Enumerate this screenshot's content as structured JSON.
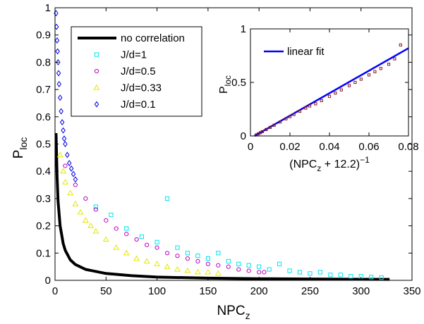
{
  "chart_data": [
    {
      "type": "scatter",
      "xlabel": "NPC",
      "xlabel_sub": "z",
      "ylabel": "P",
      "ylabel_sub": "loc",
      "xlim": [
        0,
        350
      ],
      "ylim": [
        0,
        1
      ],
      "xticks": [
        0,
        50,
        100,
        150,
        200,
        250,
        300,
        350
      ],
      "yticks": [
        0,
        0.1,
        0.2,
        0.3,
        0.4,
        0.5,
        0.6,
        0.7,
        0.8,
        0.9,
        1
      ],
      "xtick_labels": [
        "0",
        "50",
        "100",
        "150",
        "200",
        "250",
        "300",
        "350"
      ],
      "ytick_labels": [
        "0",
        "0.1",
        "0.2",
        "0.3",
        "0.4",
        "0.5",
        "0.6",
        "0.7",
        "0.8",
        "0.9",
        "1"
      ],
      "grid": false,
      "legend_position": "top-left",
      "series": [
        {
          "name": "no correlation",
          "kind": "line",
          "color": "#000000",
          "x": [
            1,
            2,
            3,
            5,
            8,
            10,
            15,
            20,
            30,
            50,
            75,
            100,
            150,
            200,
            250,
            300,
            328
          ],
          "y": [
            0.54,
            0.38,
            0.29,
            0.2,
            0.135,
            0.11,
            0.075,
            0.058,
            0.04,
            0.025,
            0.017,
            0.012,
            0.008,
            0.006,
            0.005,
            0.004,
            0.0035
          ]
        },
        {
          "name": "J/d=1",
          "kind": "marker",
          "marker": "square",
          "color": "#00e5ee",
          "x": [
            40,
            55,
            70,
            85,
            100,
            110,
            120,
            130,
            140,
            150,
            160,
            170,
            180,
            190,
            200,
            210,
            220,
            230,
            240,
            250,
            260,
            270,
            280,
            290,
            300,
            310,
            320
          ],
          "y": [
            0.27,
            0.24,
            0.19,
            0.16,
            0.14,
            0.3,
            0.12,
            0.1,
            0.09,
            0.08,
            0.1,
            0.07,
            0.06,
            0.055,
            0.05,
            0.04,
            0.06,
            0.035,
            0.03,
            0.025,
            0.03,
            0.02,
            0.02,
            0.015,
            0.015,
            0.012,
            0.01
          ]
        },
        {
          "name": "J/d=0.5",
          "kind": "marker",
          "marker": "circle",
          "color": "#c000c0",
          "x": [
            10,
            20,
            30,
            40,
            50,
            60,
            70,
            80,
            90,
            100,
            110,
            120,
            130,
            140,
            150,
            160,
            170,
            180,
            190,
            200,
            205
          ],
          "y": [
            0.42,
            0.35,
            0.3,
            0.26,
            0.22,
            0.19,
            0.17,
            0.15,
            0.13,
            0.12,
            0.1,
            0.09,
            0.08,
            0.07,
            0.06,
            0.055,
            0.05,
            0.04,
            0.035,
            0.03,
            0.03
          ]
        },
        {
          "name": "J/d=0.33",
          "kind": "marker",
          "marker": "triangle",
          "color": "#e6e600",
          "x": [
            5,
            8,
            10,
            15,
            20,
            25,
            30,
            35,
            40,
            50,
            60,
            70,
            80,
            90,
            100,
            110,
            120,
            130,
            140,
            150,
            160
          ],
          "y": [
            0.46,
            0.4,
            0.36,
            0.32,
            0.28,
            0.25,
            0.22,
            0.2,
            0.18,
            0.15,
            0.12,
            0.1,
            0.08,
            0.07,
            0.06,
            0.05,
            0.04,
            0.035,
            0.03,
            0.03,
            0.025
          ]
        },
        {
          "name": "J/d=0.1",
          "kind": "marker",
          "marker": "diamond",
          "color": "#0000e0",
          "x": [
            1,
            1.5,
            2,
            2.5,
            3,
            3.5,
            4,
            5,
            6,
            7,
            8,
            9,
            10,
            12,
            14,
            16,
            18,
            20
          ],
          "y": [
            0.98,
            0.93,
            0.88,
            0.84,
            0.8,
            0.76,
            0.72,
            0.67,
            0.62,
            0.58,
            0.55,
            0.52,
            0.5,
            0.46,
            0.43,
            0.41,
            0.39,
            0.37
          ]
        }
      ]
    },
    {
      "type": "scatter",
      "inset": true,
      "xlabel": "(NPC",
      "xlabel_sub": "z",
      "xlabel_tail": " + 12.2)",
      "xlabel_sup": "−1",
      "ylabel": "P",
      "ylabel_sub": "loc",
      "xlim": [
        0,
        0.08
      ],
      "ylim": [
        0,
        1
      ],
      "xticks": [
        0,
        0.02,
        0.04,
        0.06,
        0.08
      ],
      "yticks": [
        0,
        0.5,
        1
      ],
      "xtick_labels": [
        "0",
        "0.02",
        "0.04",
        "0.06",
        "0.08"
      ],
      "ytick_labels": [
        "0",
        "0.5",
        "1"
      ],
      "grid": false,
      "legend_position": "top-left",
      "series": [
        {
          "name": "linear fit",
          "kind": "line",
          "color": "#0000ff",
          "x": [
            0.002,
            0.08
          ],
          "y": [
            0,
            0.82
          ]
        },
        {
          "name": "",
          "kind": "marker",
          "marker": "square",
          "color": "#8b1a1a",
          "x": [
            0.003,
            0.004,
            0.005,
            0.006,
            0.008,
            0.01,
            0.012,
            0.015,
            0.018,
            0.02,
            0.022,
            0.025,
            0.028,
            0.03,
            0.033,
            0.036,
            0.04,
            0.043,
            0.046,
            0.05,
            0.053,
            0.056,
            0.06,
            0.063,
            0.066,
            0.07,
            0.073,
            0.076
          ],
          "y": [
            0.01,
            0.02,
            0.03,
            0.04,
            0.06,
            0.08,
            0.1,
            0.13,
            0.16,
            0.18,
            0.2,
            0.23,
            0.26,
            0.28,
            0.3,
            0.33,
            0.37,
            0.4,
            0.43,
            0.47,
            0.5,
            0.53,
            0.57,
            0.6,
            0.63,
            0.67,
            0.72,
            0.85
          ]
        }
      ]
    }
  ]
}
